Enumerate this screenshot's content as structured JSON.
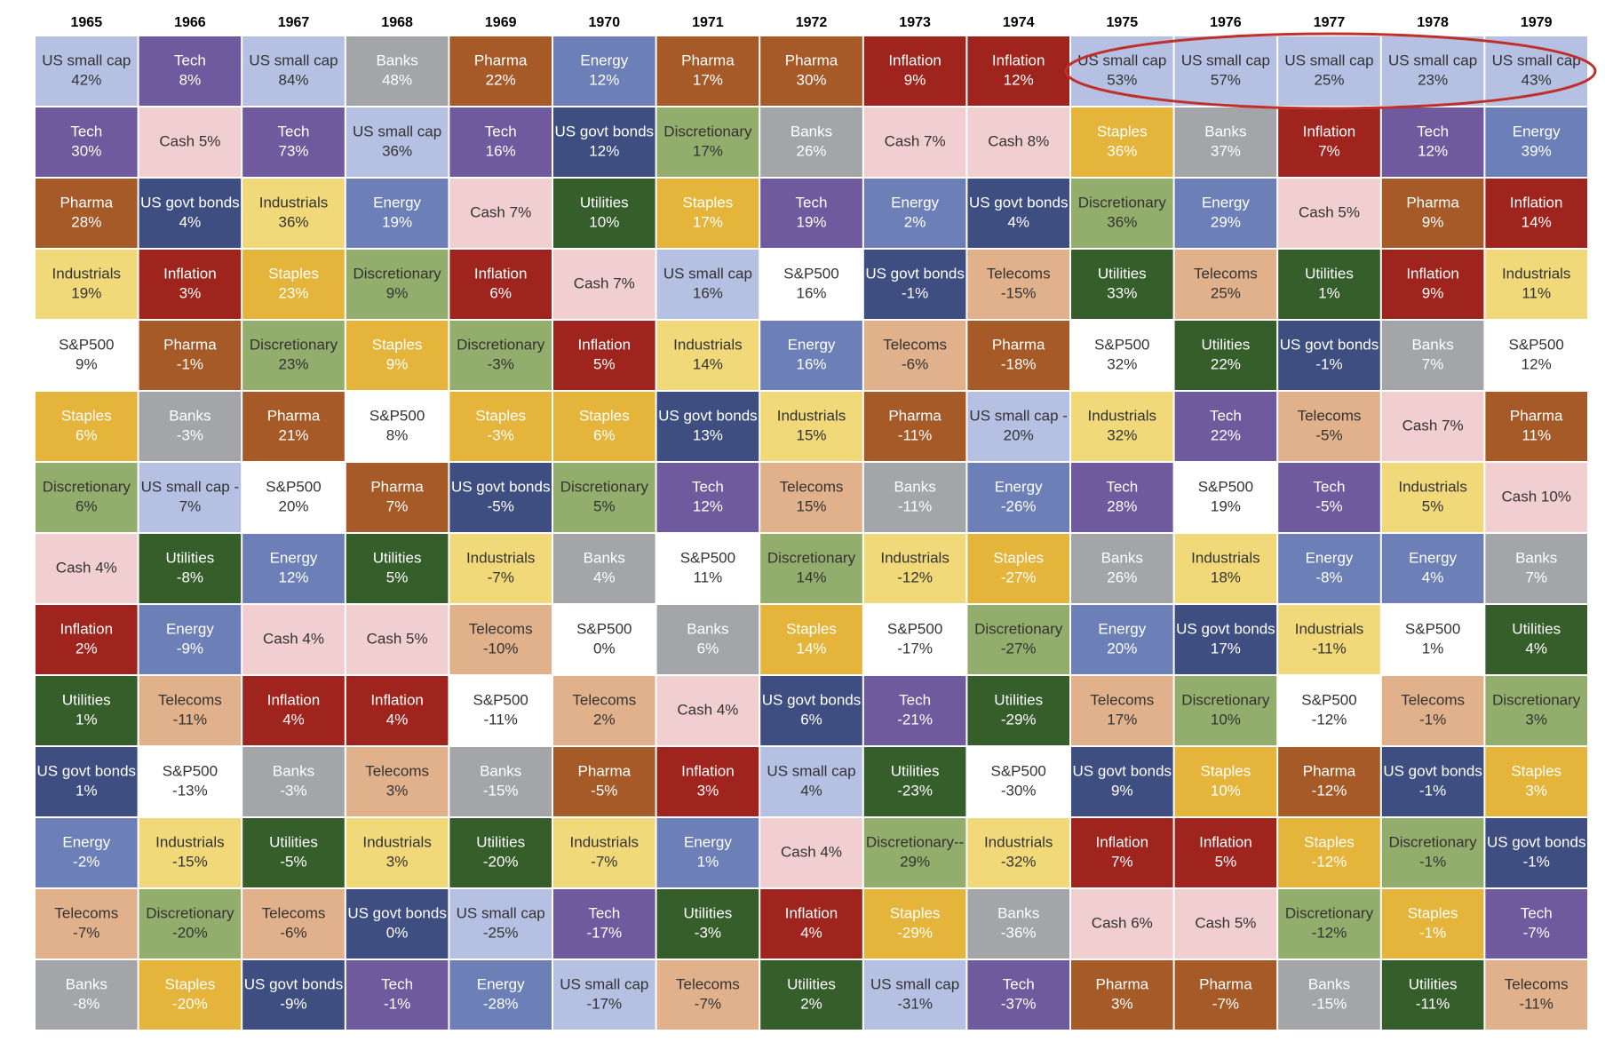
{
  "header": {
    "years": [
      "1965",
      "1966",
      "1967",
      "1968",
      "1969",
      "1970",
      "1971",
      "1972",
      "1973",
      "1974",
      "1975",
      "1976",
      "1977",
      "1978",
      "1979"
    ]
  },
  "columns": [
    [
      [
        "US small cap",
        "42%"
      ],
      [
        "Tech",
        "30%"
      ],
      [
        "Pharma",
        "28%"
      ],
      [
        "Industrials",
        "19%"
      ],
      [
        "S&P500",
        "9%"
      ],
      [
        "Staples",
        "6%"
      ],
      [
        "Discretionary",
        "6%"
      ],
      [
        "Cash 4%"
      ],
      [
        "Inflation",
        "2%"
      ],
      [
        "Utilities",
        "1%"
      ],
      [
        "US govt bonds",
        "1%"
      ],
      [
        "Energy",
        "-2%"
      ],
      [
        "Telecoms",
        "-7%"
      ],
      [
        "Banks",
        "-8%"
      ]
    ],
    [
      [
        "Tech",
        "8%"
      ],
      [
        "Cash 5%"
      ],
      [
        "US govt bonds",
        "4%"
      ],
      [
        "Inflation",
        "3%"
      ],
      [
        "Pharma",
        "-1%"
      ],
      [
        "Banks",
        "-3%"
      ],
      [
        "US small cap -",
        "7%"
      ],
      [
        "Utilities",
        "-8%"
      ],
      [
        "Energy",
        "-9%"
      ],
      [
        "Telecoms",
        "-11%"
      ],
      [
        "S&P500",
        "-13%"
      ],
      [
        "Industrials",
        "-15%"
      ],
      [
        "Discretionary",
        "-20%"
      ],
      [
        "Staples",
        "-20%"
      ]
    ],
    [
      [
        "US small cap",
        "84%"
      ],
      [
        "Tech",
        "73%"
      ],
      [
        "Industrials",
        "36%"
      ],
      [
        "Staples",
        "23%"
      ],
      [
        "Discretionary",
        "23%"
      ],
      [
        "Pharma",
        "21%"
      ],
      [
        "S&P500",
        "20%"
      ],
      [
        "Energy",
        "12%"
      ],
      [
        "Cash 4%"
      ],
      [
        "Inflation",
        "4%"
      ],
      [
        "Banks",
        "-3%"
      ],
      [
        "Utilities",
        "-5%"
      ],
      [
        "Telecoms",
        "-6%"
      ],
      [
        "US govt bonds",
        "-9%"
      ]
    ],
    [
      [
        "Banks",
        "48%"
      ],
      [
        "US small cap",
        "36%"
      ],
      [
        "Energy",
        "19%"
      ],
      [
        "Discretionary",
        "9%"
      ],
      [
        "Staples",
        "9%"
      ],
      [
        "S&P500",
        "8%"
      ],
      [
        "Pharma",
        "7%"
      ],
      [
        "Utilities",
        "5%"
      ],
      [
        "Cash 5%"
      ],
      [
        "Inflation",
        "4%"
      ],
      [
        "Telecoms",
        "3%"
      ],
      [
        "Industrials",
        "3%"
      ],
      [
        "US govt bonds",
        "0%"
      ],
      [
        "Tech",
        "-1%"
      ]
    ],
    [
      [
        "Pharma",
        "22%"
      ],
      [
        "Tech",
        "16%"
      ],
      [
        "Cash 7%"
      ],
      [
        "Inflation",
        "6%"
      ],
      [
        "Discretionary",
        "-3%"
      ],
      [
        "Staples",
        "-3%"
      ],
      [
        "US govt bonds",
        "-5%"
      ],
      [
        "Industrials",
        "-7%"
      ],
      [
        "Telecoms",
        "-10%"
      ],
      [
        "S&P500",
        "-11%"
      ],
      [
        "Banks",
        "-15%"
      ],
      [
        "Utilities",
        "-20%"
      ],
      [
        "US small cap",
        "-25%"
      ],
      [
        "Energy",
        "-28%"
      ]
    ],
    [
      [
        "Energy",
        "12%"
      ],
      [
        "US govt bonds",
        "12%"
      ],
      [
        "Utilities",
        "10%"
      ],
      [
        "Cash 7%"
      ],
      [
        "Inflation",
        "5%"
      ],
      [
        "Staples",
        "6%"
      ],
      [
        "Discretionary",
        "5%"
      ],
      [
        "Banks",
        "4%"
      ],
      [
        "S&P500",
        "0%"
      ],
      [
        "Telecoms",
        "2%"
      ],
      [
        "Pharma",
        "-5%"
      ],
      [
        "Industrials",
        "-7%"
      ],
      [
        "Tech",
        "-17%"
      ],
      [
        "US small cap",
        "-17%"
      ]
    ],
    [
      [
        "Pharma",
        "17%"
      ],
      [
        "Discretionary",
        "17%"
      ],
      [
        "Staples",
        "17%"
      ],
      [
        "US small cap",
        "16%"
      ],
      [
        "Industrials",
        "14%"
      ],
      [
        "US govt bonds",
        "13%"
      ],
      [
        "Tech",
        "12%"
      ],
      [
        "S&P500",
        "11%"
      ],
      [
        "Banks",
        "6%"
      ],
      [
        "Cash 4%"
      ],
      [
        "Inflation",
        "3%"
      ],
      [
        "Energy",
        "1%"
      ],
      [
        "Utilities",
        "-3%"
      ],
      [
        "Telecoms",
        "-7%"
      ]
    ],
    [
      [
        "Pharma",
        "30%"
      ],
      [
        "Banks",
        "26%"
      ],
      [
        "Tech",
        "19%"
      ],
      [
        "S&P500",
        "16%"
      ],
      [
        "Energy",
        "16%"
      ],
      [
        "Industrials",
        "15%"
      ],
      [
        "Telecoms",
        "15%"
      ],
      [
        "Discretionary",
        "14%"
      ],
      [
        "Staples",
        "14%"
      ],
      [
        "US govt bonds",
        "6%"
      ],
      [
        "US small cap",
        "4%"
      ],
      [
        "Cash 4%"
      ],
      [
        "Inflation",
        "4%"
      ],
      [
        "Utilities",
        "2%"
      ]
    ],
    [
      [
        "Inflation",
        "9%"
      ],
      [
        "Cash 7%"
      ],
      [
        "Energy",
        "2%"
      ],
      [
        "US govt bonds",
        "-1%"
      ],
      [
        "Telecoms",
        "-6%"
      ],
      [
        "Pharma",
        "-11%"
      ],
      [
        "Banks",
        "-11%"
      ],
      [
        "Industrials",
        "-12%"
      ],
      [
        "S&P500",
        "-17%"
      ],
      [
        "Tech",
        "-21%"
      ],
      [
        "Utilities",
        "-23%"
      ],
      [
        "Discretionary--",
        "29%"
      ],
      [
        "Staples",
        "-29%"
      ],
      [
        "US small cap",
        "-31%"
      ]
    ],
    [
      [
        "Inflation",
        "12%"
      ],
      [
        "Cash 8%"
      ],
      [
        "US govt bonds",
        "4%"
      ],
      [
        "Telecoms",
        "-15%"
      ],
      [
        "Pharma",
        "-18%"
      ],
      [
        "US small cap -",
        "20%"
      ],
      [
        "Energy",
        "-26%"
      ],
      [
        "Staples",
        "-27%"
      ],
      [
        "Discretionary",
        "-27%"
      ],
      [
        "Utilities",
        "-29%"
      ],
      [
        "S&P500",
        "-30%"
      ],
      [
        "Industrials",
        "-32%"
      ],
      [
        "Banks",
        "-36%"
      ],
      [
        "Tech",
        "-37%"
      ]
    ],
    [
      [
        "US small cap",
        "53%"
      ],
      [
        "Staples",
        "36%"
      ],
      [
        "Discretionary",
        "36%"
      ],
      [
        "Utilities",
        "33%"
      ],
      [
        "S&P500",
        "32%"
      ],
      [
        "Industrials",
        "32%"
      ],
      [
        "Tech",
        "28%"
      ],
      [
        "Banks",
        "26%"
      ],
      [
        "Energy",
        "20%"
      ],
      [
        "Telecoms",
        "17%"
      ],
      [
        "US govt bonds",
        "9%"
      ],
      [
        "Inflation",
        "7%"
      ],
      [
        "Cash 6%"
      ],
      [
        "Pharma",
        "3%"
      ]
    ],
    [
      [
        "US small cap",
        "57%"
      ],
      [
        "Banks",
        "37%"
      ],
      [
        "Energy",
        "29%"
      ],
      [
        "Telecoms",
        "25%"
      ],
      [
        "Utilities",
        "22%"
      ],
      [
        "Tech",
        "22%"
      ],
      [
        "S&P500",
        "19%"
      ],
      [
        "Industrials",
        "18%"
      ],
      [
        "US govt bonds",
        "17%"
      ],
      [
        "Discretionary",
        "10%"
      ],
      [
        "Staples",
        "10%"
      ],
      [
        "Inflation",
        "5%"
      ],
      [
        "Cash 5%"
      ],
      [
        "Pharma",
        "-7%"
      ]
    ],
    [
      [
        "US small cap",
        "25%"
      ],
      [
        "Inflation",
        "7%"
      ],
      [
        "Cash 5%"
      ],
      [
        "Utilities",
        "1%"
      ],
      [
        "US govt bonds",
        "-1%"
      ],
      [
        "Telecoms",
        "-5%"
      ],
      [
        "Tech",
        "-5%"
      ],
      [
        "Energy",
        "-8%"
      ],
      [
        "Industrials",
        "-11%"
      ],
      [
        "S&P500",
        "-12%"
      ],
      [
        "Pharma",
        "-12%"
      ],
      [
        "Staples",
        "-12%"
      ],
      [
        "Discretionary",
        "-12%"
      ],
      [
        "Banks",
        "-15%"
      ]
    ],
    [
      [
        "US small cap",
        "23%"
      ],
      [
        "Tech",
        "12%"
      ],
      [
        "Pharma",
        "9%"
      ],
      [
        "Inflation",
        "9%"
      ],
      [
        "Banks",
        "7%"
      ],
      [
        "Cash 7%"
      ],
      [
        "Industrials",
        "5%"
      ],
      [
        "Energy",
        "4%"
      ],
      [
        "S&P500",
        "1%"
      ],
      [
        "Telecoms",
        "-1%"
      ],
      [
        "US govt bonds",
        "-1%"
      ],
      [
        "Discretionary",
        "-1%"
      ],
      [
        "Staples",
        "-1%"
      ],
      [
        "Utilities",
        "-11%"
      ]
    ],
    [
      [
        "US small cap",
        "43%"
      ],
      [
        "Energy",
        "39%"
      ],
      [
        "Inflation",
        "14%"
      ],
      [
        "Industrials",
        "11%"
      ],
      [
        "S&P500",
        "12%"
      ],
      [
        "Pharma",
        "11%"
      ],
      [
        "Cash 10%"
      ],
      [
        "Banks",
        "7%"
      ],
      [
        "Utilities",
        "4%"
      ],
      [
        "Discretionary",
        "3%"
      ],
      [
        "Staples",
        "3%"
      ],
      [
        "US govt bonds",
        "-1%"
      ],
      [
        "Tech",
        "-7%"
      ],
      [
        "Telecoms",
        "-11%"
      ]
    ]
  ],
  "palette": {
    "US small cap": [
      "#b5c0e3",
      "#333333"
    ],
    "US govt bonds": [
      "#3f4e80",
      "#ffffff"
    ],
    "Tech": [
      "#6e5a9c",
      "#ffffff"
    ],
    "Banks": [
      "#a4a5a8",
      "#ffffff"
    ],
    "Pharma": [
      "#a55a27",
      "#ffffff"
    ],
    "Energy": [
      "#6d7fb7",
      "#ffffff"
    ],
    "Inflation": [
      "#9f241d",
      "#ffffff"
    ],
    "Cash": [
      "#f1cfd1",
      "#333333"
    ],
    "Discretionary": [
      "#93ad6c",
      "#333333"
    ],
    "Staples": [
      "#e5b43b",
      "#ffffff"
    ],
    "Industrials": [
      "#f1d97a",
      "#333333"
    ],
    "Utilities": [
      "#365e2b",
      "#ffffff"
    ],
    "S&P500": [
      "#ffffff",
      "#333333"
    ],
    "Telecoms": [
      "#e1b18b",
      "#333333"
    ]
  }
}
